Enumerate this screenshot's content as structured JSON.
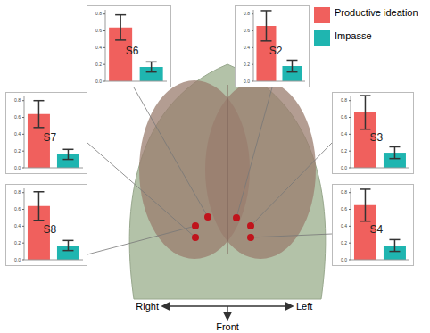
{
  "chart_data": [
    {
      "type": "bar",
      "title": "S6",
      "categories": [
        "Productive ideation",
        "Impasse"
      ],
      "values": [
        0.64,
        0.17
      ],
      "errors": [
        0.15,
        0.06
      ],
      "colors": [
        "#f0605d",
        "#1fb5b0"
      ],
      "ylim": [
        0,
        0.85
      ],
      "yticks": [
        {
          "value": 0,
          "label": "0.0"
        },
        0.2,
        0.4,
        0.6,
        0.8
      ],
      "grid": false,
      "tick_labels": "y"
    },
    {
      "type": "bar",
      "title": "S2",
      "categories": [
        "Productive ideation",
        "Impasse"
      ],
      "values": [
        0.66,
        0.18
      ],
      "errors": [
        0.18,
        0.07
      ],
      "colors": [
        "#f0605d",
        "#1fb5b0"
      ],
      "ylim": [
        0,
        0.85
      ],
      "yticks": [
        {
          "value": 0,
          "label": "0.0"
        },
        0.2,
        0.4,
        0.6,
        0.8
      ],
      "grid": false,
      "tick_labels": "y",
      "legend": "top-right"
    },
    {
      "type": "bar",
      "title": "S7",
      "categories": [
        "Productive ideation",
        "Impasse"
      ],
      "values": [
        0.64,
        0.16
      ],
      "errors": [
        0.16,
        0.06
      ],
      "colors": [
        "#f0605d",
        "#1fb5b0"
      ],
      "ylim": [
        0,
        0.85
      ],
      "yticks": [
        {
          "value": 0,
          "label": "0.0"
        },
        0.2,
        0.4,
        0.6,
        0.8
      ],
      "grid": false,
      "tick_labels": "y"
    },
    {
      "type": "bar",
      "title": "S3",
      "categories": [
        "Productive ideation",
        "Impasse"
      ],
      "values": [
        0.66,
        0.18
      ],
      "errors": [
        0.2,
        0.07
      ],
      "colors": [
        "#f0605d",
        "#1fb5b0"
      ],
      "ylim": [
        0,
        0.85
      ],
      "yticks": [
        {
          "value": 0,
          "label": "0.0"
        },
        0.2,
        0.4,
        0.6,
        0.8
      ],
      "grid": false,
      "tick_labels": "y"
    },
    {
      "type": "bar",
      "title": "S8",
      "categories": [
        "Productive ideation",
        "Impasse"
      ],
      "values": [
        0.64,
        0.17
      ],
      "errors": [
        0.17,
        0.06
      ],
      "colors": [
        "#f0605d",
        "#1fb5b0"
      ],
      "ylim": [
        0,
        0.85
      ],
      "yticks": [
        {
          "value": 0,
          "label": "0.0"
        },
        0.2,
        0.4,
        0.6,
        0.8
      ],
      "grid": false,
      "tick_labels": "y"
    },
    {
      "type": "bar",
      "title": "S4",
      "categories": [
        "Productive ideation",
        "Impasse"
      ],
      "values": [
        0.65,
        0.17
      ],
      "errors": [
        0.19,
        0.07
      ],
      "colors": [
        "#f0605d",
        "#1fb5b0"
      ],
      "ylim": [
        0,
        0.85
      ],
      "yticks": [
        {
          "value": 0,
          "label": "0.0"
        },
        0.2,
        0.4,
        0.6,
        0.8
      ],
      "grid": false,
      "tick_labels": "y"
    }
  ],
  "diagram": {
    "right": "Right",
    "left": "Left",
    "front": "Front"
  }
}
